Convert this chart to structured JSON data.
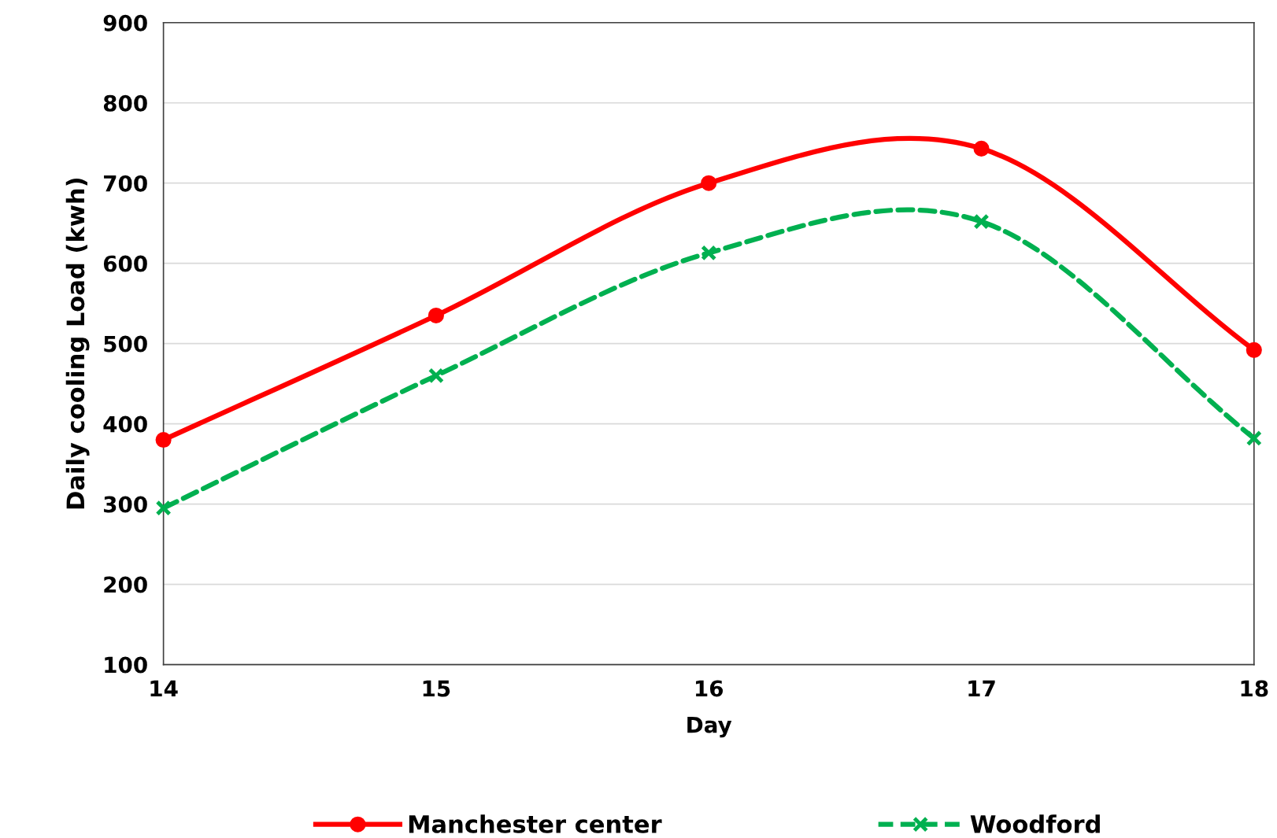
{
  "chart_data": {
    "type": "line",
    "xlabel": "Day",
    "ylabel": "Daily cooling Load (kwh)",
    "x": [
      14,
      15,
      16,
      17,
      18
    ],
    "series": [
      {
        "name": "Manchester center",
        "color": "#ff0000",
        "values": [
          380,
          535,
          700,
          743,
          492
        ],
        "marker": "circle",
        "line_style": "solid"
      },
      {
        "name": "Woodford",
        "color": "#00b050",
        "values": [
          295,
          460,
          613,
          652,
          382
        ],
        "marker": "cross",
        "line_style": "dashed"
      }
    ],
    "xlim": [
      14,
      18
    ],
    "xticks": [
      14,
      15,
      16,
      17,
      18
    ],
    "ylim": [
      100,
      900
    ],
    "yticks": [
      100,
      200,
      300,
      400,
      500,
      600,
      700,
      800,
      900
    ],
    "grid": "y",
    "legend": "bottom"
  }
}
